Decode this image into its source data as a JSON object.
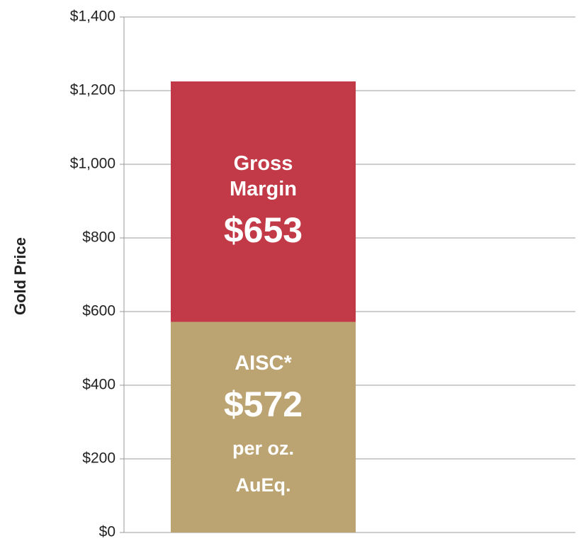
{
  "chart_data": {
    "type": "stacked_bar",
    "ylabel": "Gold Price",
    "categories": [
      null
    ],
    "series": [
      {
        "name": "AISC*",
        "color": "#bba472",
        "values": [
          572
        ],
        "value_labels": [
          "$572"
        ]
      },
      {
        "name": "Gross Margin",
        "color": "#c23a47",
        "values": [
          653
        ],
        "value_labels": [
          "$653"
        ]
      }
    ],
    "annotations": [
      "per oz. AuEq."
    ],
    "ylim": [
      0,
      1400
    ],
    "yticks": [
      {
        "value": 0,
        "label": "$0"
      },
      {
        "value": 200,
        "label": "$200"
      },
      {
        "value": 400,
        "label": "$400"
      },
      {
        "value": 600,
        "label": "$600"
      },
      {
        "value": 800,
        "label": "$800"
      },
      {
        "value": 1000,
        "label": "$1,000"
      },
      {
        "value": 1200,
        "label": "$1,200"
      },
      {
        "value": 1400,
        "label": "$1,400"
      }
    ],
    "grid": true
  }
}
